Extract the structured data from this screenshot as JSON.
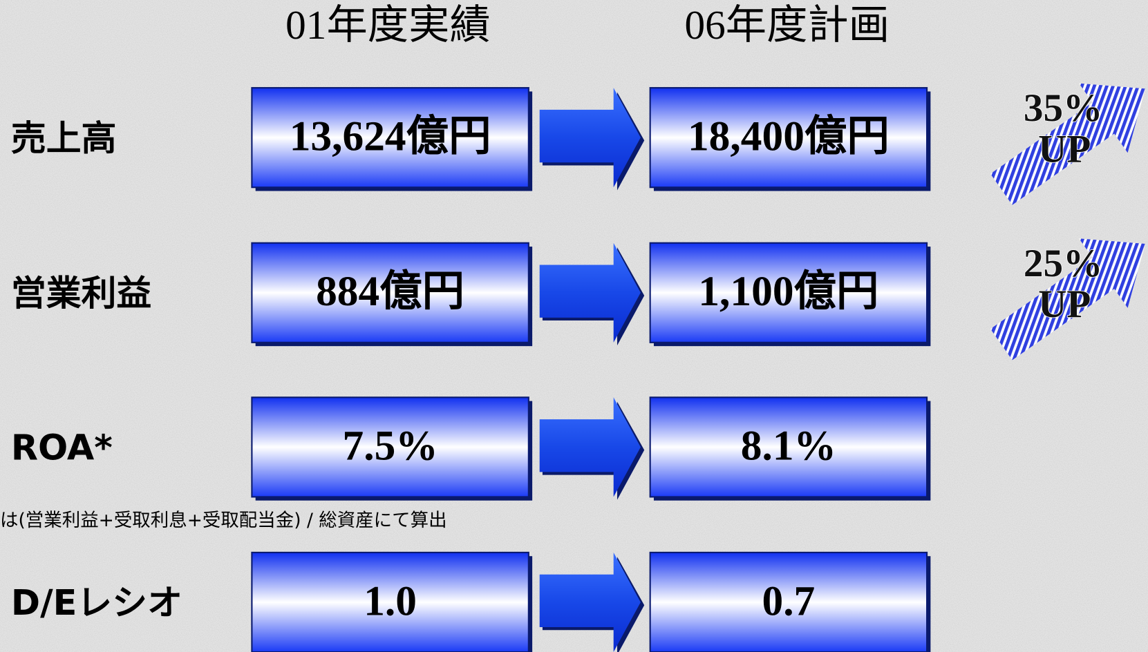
{
  "headers": [
    "01年度実績",
    "06年度計画"
  ],
  "rows": [
    {
      "label": "売上高",
      "before": "13,624億円",
      "after": "18,400億円",
      "badge": [
        "35%",
        "UP"
      ]
    },
    {
      "label": "営業利益",
      "before": "884億円",
      "after": "1,100億円",
      "badge": [
        "25%",
        "UP"
      ]
    },
    {
      "label": "ROA*",
      "before": "7.5%",
      "after": "8.1%"
    },
    {
      "label": "D/Eレシオ",
      "before": "1.0",
      "after": "0.7"
    }
  ],
  "footnote": "は(営業利益+受取利息+受取配当金) / 総資産にて算出"
}
